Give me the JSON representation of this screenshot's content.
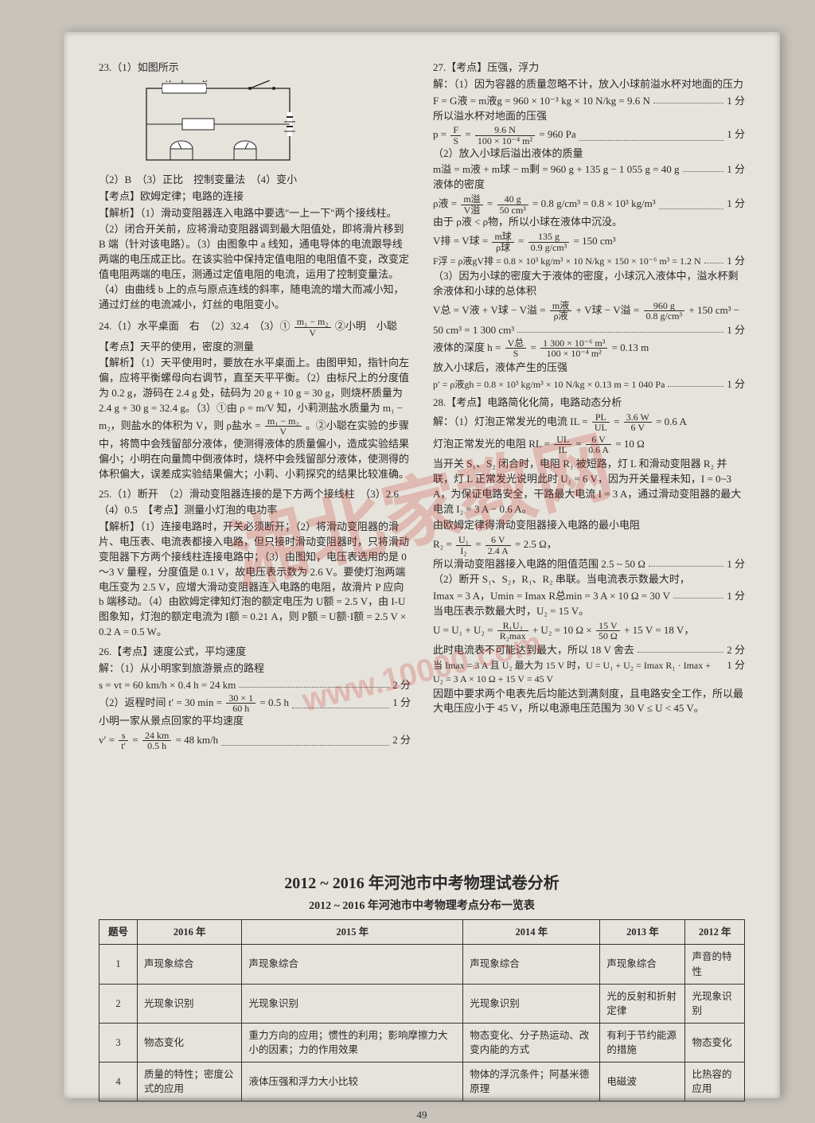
{
  "page_number": "49",
  "watermark_main": "湘北家教网",
  "watermark_sub": "www.10000.com",
  "leftCol": {
    "q23_head": "23.（1）如图所示",
    "q23_line2": "（2）B　（3）正比　控制变量法　（4）变小",
    "q23_kd": "【考点】欧姆定律；电路的连接",
    "q23_jx1": "【解析】（1）滑动变阻器连入电路中要选\"一上一下\"两个接线柱。",
    "q23_jx2": "（2）闭合开关前，应将滑动变阻器调到最大阻值处，即将滑片移到 B 端（针对该电路）。（3）由图象中 a 线知，通电导体的电流跟导线两端的电压成正比。在该实验中保持定值电阻的电阻值不变，改变定值电阻两端的电压，测通过定值电阻的电流，运用了控制变量法。（4）由曲线 b 上的点与原点连线的斜率，随电流的增大而减小知，通过灯丝的电流减小，灯丝的电阻变小。",
    "q24_l1a": "24.（1）水平桌面　右　（2）32.4　（3）①",
    "q24_l1b": "②小明　小聪",
    "q24_frac_num": "m₁ − m₂",
    "q24_frac_den": "V",
    "q24_kd": "【考点】天平的使用，密度的测量",
    "q24_jx1": "【解析】（1）天平使用时，要放在水平桌面上。由图甲知，指针向左偏，应将平衡螺母向右调节，直至天平平衡。（2）由标尺上的分度值为 0.2 g，游码在 2.4 g 处，砝码为 20 g + 10 g = 30 g，则烧杯质量为 2.4 g + 30 g = 32.4 g。（3）①由 ρ = m/V 知，小莉测盐水质量为 m₁ − m₂，则盐水的体积为 V，则 ρ盐水 =",
    "q24_jx2": "。②小聪在实验的步骤中，将筒中会残留部分液体，使测得液体的质量偏小，造成实验结果偏小；小明在向量筒中倒液体时，烧杯中会残留部分液体，使测得的体积偏大，误差成实验结果偏大；小莉、小莉探究的结果比较准确。",
    "q25_l1": "25.（1）断开　（2）滑动变阻器连接的是下方两个接线柱　（3）2.6",
    "q25_l2": "（4）0.5　【考点】测量小灯泡的电功率",
    "q25_jx1": "【解析】（1）连接电路时，开关必须断开；（2）将滑动变阻器的滑片、电压表、电流表都接入电路，但只接时滑动变阻器时，只将滑动变阻器下方两个接线柱连接电路中；（3）由图知，电压表选用的是 0～3 V 量程，分度值是 0.1 V，故电压表示数为 2.6 V。要使灯泡两端电压变为 2.5 V，应增大滑动变阻器连入电路的电阻，故滑片 P 应向 b 端移动。（4）由欧姆定律知灯泡的额定电压为 U额 = 2.5 V，由 I-U 图象知，灯泡的额定电流为 I额 = 0.21 A，则 P额 = U额·I额 = 2.5 V × 0.2 A = 0.5 W。",
    "q26_l1": "26.【考点】速度公式，平均速度",
    "q26_l2": "解：（1）从小明家到旅游景点的路程",
    "q26_step1_l": "s = vt = 60 km/h × 0.4 h = 24 km",
    "q26_step1_s": "2 分",
    "q26_step2_l_a": "（2）返程时间 t′ = 30 min =",
    "q26_step2_frac_num": "30 × 1",
    "q26_step2_frac_den": "60 h",
    "q26_step2_l_b": "= 0.5 h",
    "q26_step2_s": "1 分",
    "q26_l3": "小明一家从景点回家的平均速度",
    "q26_step3_l_a": "v′ =",
    "q26_step3_frac_num": "s",
    "q26_step3_frac_den": "t′",
    "q26_step3_l_b": "=",
    "q26_step3_frac2_num": "24 km",
    "q26_step3_frac2_den": "0.5 h",
    "q26_step3_l_c": "= 48 km/h",
    "q26_step3_s": "2 分"
  },
  "rightCol": {
    "q27_l1": "27.【考点】压强，浮力",
    "q27_l2": "解：（1）因为容器的质量忽略不计，放入小球前溢水杯对地面的压力",
    "q27_s1_l": "F = G液 = m液g = 960 × 10⁻³ kg × 10 N/kg = 9.6 N",
    "q27_s1_s": "1 分",
    "q27_l3": "所以溢水杯对地面的压强",
    "q27_s2_l_a": "p =",
    "q27_s2_f1n": "F",
    "q27_s2_f1d": "S",
    "q27_s2_l_b": "=",
    "q27_s2_f2n": "9.6 N",
    "q27_s2_f2d": "100 × 10⁻⁴ m²",
    "q27_s2_l_c": "= 960 Pa",
    "q27_s2_s": "1 分",
    "q27_l4": "（2）放入小球后溢出液体的质量",
    "q27_s3_l": "m溢 = m液 + m球 − m剩 = 960 g + 135 g − 1 055 g = 40 g",
    "q27_s3_s": "1 分",
    "q27_l5": "液体的密度",
    "q27_s4_l_a": "ρ液 =",
    "q27_s4_f1n": "m溢",
    "q27_s4_f1d": "V溢",
    "q27_s4_l_b": "=",
    "q27_s4_f2n": "40 g",
    "q27_s4_f2d": "50 cm³",
    "q27_s4_l_c": "= 0.8 g/cm³ = 0.8 × 10³ kg/m³",
    "q27_s4_s": "1 分",
    "q27_l6": "由于 ρ液 < ρ物，所以小球在液体中沉没。",
    "q27_s5_l_a": "V排 = V球 =",
    "q27_s5_f1n": "m球",
    "q27_s5_f1d": "ρ球",
    "q27_s5_l_b": "=",
    "q27_s5_f2n": "135 g",
    "q27_s5_f2d": "0.9 g/cm³",
    "q27_s5_l_c": "= 150 cm³",
    "q27_s6_l": "F浮 = ρ液gV排 = 0.8 × 10³ kg/m³ × 10 N/kg × 150 × 10⁻⁶ m³ = 1.2 N",
    "q27_s6_s": "1 分",
    "q27_l7": "（3）因为小球的密度大于液体的密度，小球沉入液体中，溢水杯剩余液体和小球的总体积",
    "q27_s7_l_a": "V总 = V液 + V球 − V溢 =",
    "q27_s7_f1n": "m液",
    "q27_s7_f1d": "ρ液",
    "q27_s7_l_b": "+ V球 − V溢 =",
    "q27_s7_f2n": "960 g",
    "q27_s7_f2d": "0.8 g/cm³",
    "q27_s7_l_c": "+ 150 cm³ −",
    "q27_s7_l_d": "50 cm³ = 1 300 cm³",
    "q27_s7_s": "1 分",
    "q27_s8_l_a": "液体的深度 h =",
    "q27_s8_f1n": "V总",
    "q27_s8_f1d": "S",
    "q27_s8_l_b": "=",
    "q27_s8_f2n": "1 300 × 10⁻⁶ m³",
    "q27_s8_f2d": "100 × 10⁻⁴ m²",
    "q27_s8_l_c": "= 0.13 m",
    "q27_l8": "放入小球后，液体产生的压强",
    "q27_s9_l": "p′ = ρ液gh = 0.8 × 10³ kg/m³ × 10 N/kg × 0.13 m = 1 040 Pa",
    "q27_s9_s": "1 分",
    "q28_l1": "28.【考点】电路简化化简，电路动态分析",
    "q28_s1_l_a": "解：（1）灯泡正常发光的电流 IL =",
    "q28_s1_f1n": "PL",
    "q28_s1_f1d": "UL",
    "q28_s1_l_b": "=",
    "q28_s1_f2n": "3.6 W",
    "q28_s1_f2d": "6 V",
    "q28_s1_l_c": "= 0.6 A",
    "q28_s2_l_a": "灯泡正常发光的电阻 RL =",
    "q28_s2_f1n": "UL",
    "q28_s2_f1d": "IL",
    "q28_s2_l_b": "=",
    "q28_s2_f2n": "6 V",
    "q28_s2_f2d": "0.6 A",
    "q28_s2_l_c": "= 10 Ω",
    "q28_l2": "当开关 S₁、S₂ 闭合时，电阻 R₁ 被短路，灯 L 和滑动变阻器 R₂ 并联，灯 L 正常发光说明此时 U₁ = 6 V，因为开关量程未知，I = 0~3 A，为保证电路安全，干路最大电流 I = 3 A，通过滑动变阻器的最大电流 I₂ = 3 A − 0.6 A。",
    "q28_l3": "由欧姆定律得滑动变阻器接入电路的最小电阻",
    "q28_s3_l_a": "R₂ =",
    "q28_s3_f1n": "U₁",
    "q28_s3_f1d": "I₂",
    "q28_s3_l_b": "=",
    "q28_s3_f2n": "6 V",
    "q28_s3_f2d": "2.4 A",
    "q28_s3_l_c": "= 2.5 Ω，",
    "q28_s4_l": "所以滑动变阻器接入电路的阻值范围 2.5 ~ 50 Ω",
    "q28_s4_s": "1 分",
    "q28_l4": "（2）断开 S₁、S₂，R₁、R₂ 串联。当电流表示数最大时，",
    "q28_s5_l": "Imax = 3 A，Umin = Imax R总min = 3 A × 10 Ω = 30 V",
    "q28_s5_s": "1 分",
    "q28_l5": "当电压表示数最大时，U₂ = 15 V。",
    "q28_s6_l_a": "U = U₁ + U₂ =",
    "q28_s6_f1n": "R₁U₂",
    "q28_s6_f1d": "R₂max",
    "q28_s6_l_b": "+ U₂ = 10 Ω ×",
    "q28_s6_f2n": "15 V",
    "q28_s6_f2d": "50 Ω",
    "q28_s6_l_c": "+ 15 V = 18 V，",
    "q28_s7_l": "此时电流表不可能达到最大，所以 18 V 舍去",
    "q28_s7_s": "2 分",
    "q28_l6": "当 Imax = 3 A 且 U₂ 最大为 15 V 时，U = U₁ + U₂ = Imax R₁ · Imax + U₂ = 3 A × 10 Ω + 15 V = 45 V",
    "q28_l6_s": "1 分",
    "q28_l7": "因题中要求两个电表先后均能达到满刻度，且电路安全工作，所以最大电压应小于 45 V，所以电源电压范围为 30 V ≤ U < 45 V。"
  },
  "analysis": {
    "title": "2012 ~ 2016 年河池市中考物理试卷分析",
    "subtitle": "2012 ~ 2016 年河池市中考物理考点分布一览表",
    "headers": [
      "题号",
      "2016 年",
      "2015 年",
      "2014 年",
      "2013 年",
      "2012 年"
    ],
    "rows": [
      [
        "1",
        "声现象综合",
        "声现象综合",
        "声现象综合",
        "声现象综合",
        "声音的特性"
      ],
      [
        "2",
        "光现象识别",
        "光现象识别",
        "光现象识别",
        "光的反射和折射定律",
        "光现象识别"
      ],
      [
        "3",
        "物态变化",
        "重力方向的应用；惯性的利用；影响摩擦力大小的因素；力的作用效果",
        "物态变化、分子热运动、改变内能的方式",
        "有利于节约能源的措施",
        "物态变化"
      ],
      [
        "4",
        "质量的特性；密度公式的应用",
        "液体压强和浮力大小比较",
        "物体的浮沉条件；阿基米德原理",
        "电磁波",
        "比热容的应用"
      ]
    ]
  }
}
